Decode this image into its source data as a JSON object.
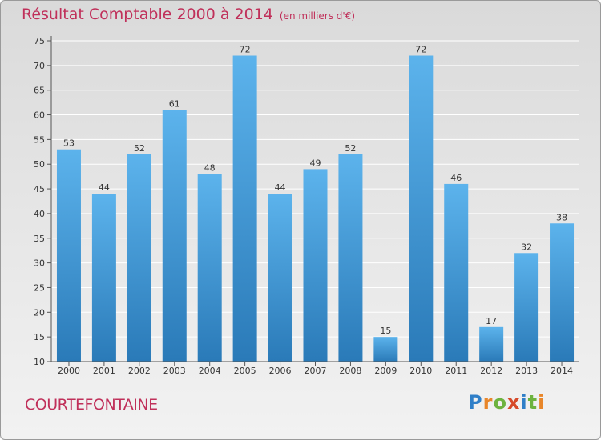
{
  "title": "Résultat Comptable 2000 à 2014",
  "unit_note": "(en milliers d'€)",
  "commune": "COURTEFONTAINE",
  "brand": "Proxiti",
  "colors": {
    "bar_light": "#5cb3ec",
    "bar_dark": "#2a7ab8",
    "title": "#c0305a",
    "grid": "#ffffff"
  },
  "chart_data": {
    "type": "bar",
    "title": "Résultat Comptable 2000 à 2014",
    "ylabel": "(en milliers d'€)",
    "categories": [
      "2000",
      "2001",
      "2002",
      "2003",
      "2004",
      "2005",
      "2006",
      "2007",
      "2008",
      "2009",
      "2010",
      "2011",
      "2012",
      "2013",
      "2014"
    ],
    "values": [
      53,
      44,
      52,
      61,
      48,
      72,
      44,
      49,
      52,
      15,
      72,
      46,
      17,
      32,
      38
    ],
    "ylim": [
      10,
      75
    ],
    "yticks": [
      10,
      15,
      20,
      25,
      30,
      35,
      40,
      45,
      50,
      55,
      60,
      65,
      70,
      75
    ],
    "grid": true,
    "data_labels": true
  }
}
